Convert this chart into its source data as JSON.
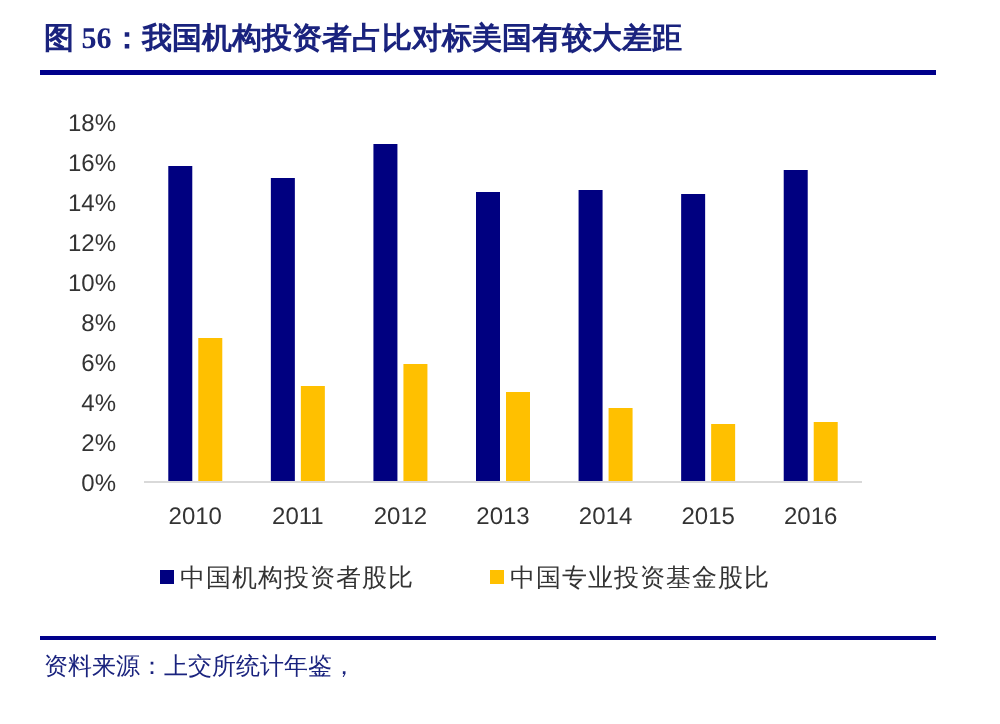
{
  "chart_data": {
    "type": "bar",
    "title": "图 56：我国机构投资者占比对标美国有较大差距",
    "categories": [
      "2010",
      "2011",
      "2012",
      "2013",
      "2014",
      "2015",
      "2016"
    ],
    "series": [
      {
        "name": "中国机构投资者股比",
        "color": "#000080",
        "values": [
          15.8,
          15.2,
          16.9,
          14.5,
          14.6,
          14.4,
          15.6
        ]
      },
      {
        "name": "中国专业投资基金股比",
        "color": "#ffc000",
        "values": [
          7.2,
          4.8,
          5.9,
          4.5,
          3.7,
          2.9,
          3.0
        ]
      }
    ],
    "ylim": [
      0,
      18
    ],
    "yticks": [
      {
        "value": 0,
        "label": "0%"
      },
      {
        "value": 2,
        "label": "2%"
      },
      {
        "value": 4,
        "label": "4%"
      },
      {
        "value": 6,
        "label": "6%"
      },
      {
        "value": 8,
        "label": "8%"
      },
      {
        "value": 10,
        "label": "10%"
      },
      {
        "value": 12,
        "label": "12%"
      },
      {
        "value": 14,
        "label": "14%"
      },
      {
        "value": 16,
        "label": "16%"
      },
      {
        "value": 18,
        "label": "18%"
      }
    ],
    "legend": "bottom",
    "annotations": [
      "资料来源：上交所统计年鉴，"
    ]
  }
}
